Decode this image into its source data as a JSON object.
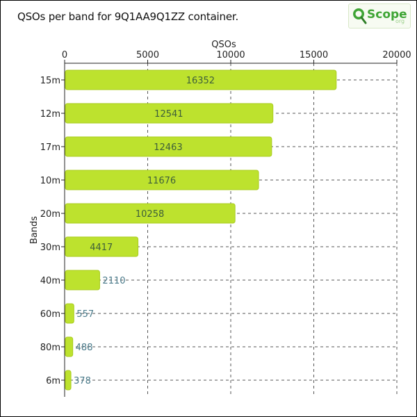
{
  "colors": {
    "bar": "#bde22e",
    "bar_edge": "#a9cc1f",
    "label_inside": "#3d5e3a",
    "label_outside": "#4a7a8a",
    "grid": "#555555"
  },
  "logo": {
    "text": "Scope",
    "suffix": "org",
    "icon": "magnifier-q-icon"
  },
  "chart_data": {
    "type": "bar",
    "orientation": "horizontal",
    "title": "QSOs per band for 9Q1AA9Q1ZZ container.",
    "xlabel": "QSOs",
    "ylabel": "Bands",
    "xlim": [
      0,
      20000
    ],
    "xticks": [
      0,
      5000,
      10000,
      15000,
      20000
    ],
    "x_axis_position": "top",
    "grid": true,
    "categories": [
      "15m",
      "12m",
      "17m",
      "10m",
      "20m",
      "30m",
      "40m",
      "60m",
      "80m",
      "6m"
    ],
    "values": [
      16352,
      12541,
      12463,
      11676,
      10258,
      4417,
      2110,
      557,
      488,
      378
    ]
  }
}
